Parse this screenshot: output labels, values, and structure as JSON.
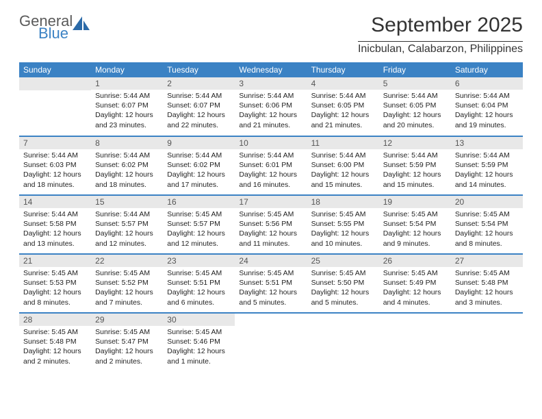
{
  "brand": {
    "line1": "General",
    "line2": "Blue",
    "logo_color": "#2b6aa8",
    "text_color1": "#5a5a5a",
    "text_color2": "#3b82c4"
  },
  "title": "September 2025",
  "location": "Inicbulan, Calabarzon, Philippines",
  "header_bg": "#3b82c4",
  "header_fg": "#ffffff",
  "daynum_bg": "#e8e8e8",
  "daynum_fg": "#555555",
  "border_color": "#3b82c4",
  "text_color": "#222222",
  "weekdays": [
    "Sunday",
    "Monday",
    "Tuesday",
    "Wednesday",
    "Thursday",
    "Friday",
    "Saturday"
  ],
  "weeks": [
    [
      null,
      {
        "n": "1",
        "sunrise": "5:44 AM",
        "sunset": "6:07 PM",
        "daylight": "12 hours and 23 minutes."
      },
      {
        "n": "2",
        "sunrise": "5:44 AM",
        "sunset": "6:07 PM",
        "daylight": "12 hours and 22 minutes."
      },
      {
        "n": "3",
        "sunrise": "5:44 AM",
        "sunset": "6:06 PM",
        "daylight": "12 hours and 21 minutes."
      },
      {
        "n": "4",
        "sunrise": "5:44 AM",
        "sunset": "6:05 PM",
        "daylight": "12 hours and 21 minutes."
      },
      {
        "n": "5",
        "sunrise": "5:44 AM",
        "sunset": "6:05 PM",
        "daylight": "12 hours and 20 minutes."
      },
      {
        "n": "6",
        "sunrise": "5:44 AM",
        "sunset": "6:04 PM",
        "daylight": "12 hours and 19 minutes."
      }
    ],
    [
      {
        "n": "7",
        "sunrise": "5:44 AM",
        "sunset": "6:03 PM",
        "daylight": "12 hours and 18 minutes."
      },
      {
        "n": "8",
        "sunrise": "5:44 AM",
        "sunset": "6:02 PM",
        "daylight": "12 hours and 18 minutes."
      },
      {
        "n": "9",
        "sunrise": "5:44 AM",
        "sunset": "6:02 PM",
        "daylight": "12 hours and 17 minutes."
      },
      {
        "n": "10",
        "sunrise": "5:44 AM",
        "sunset": "6:01 PM",
        "daylight": "12 hours and 16 minutes."
      },
      {
        "n": "11",
        "sunrise": "5:44 AM",
        "sunset": "6:00 PM",
        "daylight": "12 hours and 15 minutes."
      },
      {
        "n": "12",
        "sunrise": "5:44 AM",
        "sunset": "5:59 PM",
        "daylight": "12 hours and 15 minutes."
      },
      {
        "n": "13",
        "sunrise": "5:44 AM",
        "sunset": "5:59 PM",
        "daylight": "12 hours and 14 minutes."
      }
    ],
    [
      {
        "n": "14",
        "sunrise": "5:44 AM",
        "sunset": "5:58 PM",
        "daylight": "12 hours and 13 minutes."
      },
      {
        "n": "15",
        "sunrise": "5:44 AM",
        "sunset": "5:57 PM",
        "daylight": "12 hours and 12 minutes."
      },
      {
        "n": "16",
        "sunrise": "5:45 AM",
        "sunset": "5:57 PM",
        "daylight": "12 hours and 12 minutes."
      },
      {
        "n": "17",
        "sunrise": "5:45 AM",
        "sunset": "5:56 PM",
        "daylight": "12 hours and 11 minutes."
      },
      {
        "n": "18",
        "sunrise": "5:45 AM",
        "sunset": "5:55 PM",
        "daylight": "12 hours and 10 minutes."
      },
      {
        "n": "19",
        "sunrise": "5:45 AM",
        "sunset": "5:54 PM",
        "daylight": "12 hours and 9 minutes."
      },
      {
        "n": "20",
        "sunrise": "5:45 AM",
        "sunset": "5:54 PM",
        "daylight": "12 hours and 8 minutes."
      }
    ],
    [
      {
        "n": "21",
        "sunrise": "5:45 AM",
        "sunset": "5:53 PM",
        "daylight": "12 hours and 8 minutes."
      },
      {
        "n": "22",
        "sunrise": "5:45 AM",
        "sunset": "5:52 PM",
        "daylight": "12 hours and 7 minutes."
      },
      {
        "n": "23",
        "sunrise": "5:45 AM",
        "sunset": "5:51 PM",
        "daylight": "12 hours and 6 minutes."
      },
      {
        "n": "24",
        "sunrise": "5:45 AM",
        "sunset": "5:51 PM",
        "daylight": "12 hours and 5 minutes."
      },
      {
        "n": "25",
        "sunrise": "5:45 AM",
        "sunset": "5:50 PM",
        "daylight": "12 hours and 5 minutes."
      },
      {
        "n": "26",
        "sunrise": "5:45 AM",
        "sunset": "5:49 PM",
        "daylight": "12 hours and 4 minutes."
      },
      {
        "n": "27",
        "sunrise": "5:45 AM",
        "sunset": "5:48 PM",
        "daylight": "12 hours and 3 minutes."
      }
    ],
    [
      {
        "n": "28",
        "sunrise": "5:45 AM",
        "sunset": "5:48 PM",
        "daylight": "12 hours and 2 minutes."
      },
      {
        "n": "29",
        "sunrise": "5:45 AM",
        "sunset": "5:47 PM",
        "daylight": "12 hours and 2 minutes."
      },
      {
        "n": "30",
        "sunrise": "5:45 AM",
        "sunset": "5:46 PM",
        "daylight": "12 hours and 1 minute."
      },
      null,
      null,
      null,
      null
    ]
  ],
  "labels": {
    "sunrise": "Sunrise:",
    "sunset": "Sunset:",
    "daylight": "Daylight:"
  }
}
